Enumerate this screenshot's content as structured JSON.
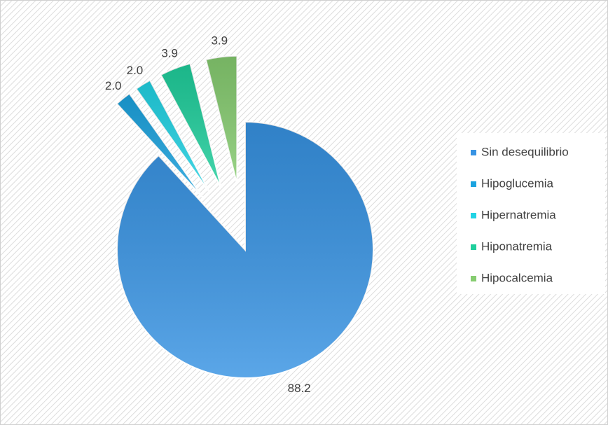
{
  "chart_data": {
    "type": "pie",
    "categories": [
      "Sin desequilibrio",
      "Hipoglucemia",
      "Hipernatremia",
      "Hiponatremia",
      "Hipocalcemia"
    ],
    "values": [
      88.2,
      2.0,
      2.0,
      3.9,
      3.9
    ],
    "value_labels": [
      "88.2",
      "2.0",
      "2.0",
      "3.9",
      "3.9"
    ],
    "colors": [
      "#3793e3",
      "#1ba3df",
      "#21d3e4",
      "#1fcf9c",
      "#86cc70"
    ],
    "legend": "right"
  }
}
